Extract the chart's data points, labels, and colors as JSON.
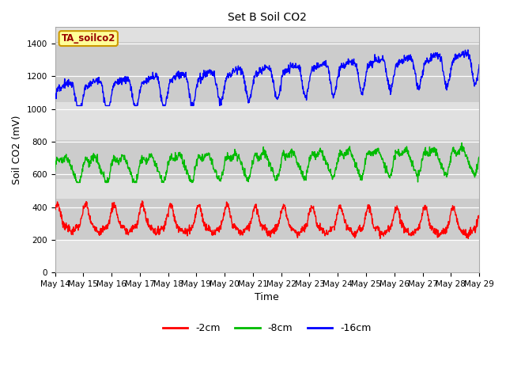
{
  "title": "Set B Soil CO2",
  "xlabel": "Time",
  "ylabel": "Soil CO2 (mV)",
  "ylim": [
    0,
    1500
  ],
  "yticks": [
    0,
    200,
    400,
    600,
    800,
    1000,
    1200,
    1400
  ],
  "background_color": "#ffffff",
  "plot_bg_color": "#e0e0e0",
  "band_bg": "#cccccc",
  "band_ranges": {
    "red": [
      200,
      450
    ],
    "green": [
      570,
      810
    ],
    "blue": [
      1040,
      1410
    ]
  },
  "legend_labels": [
    "-2cm",
    "-8cm",
    "-16cm"
  ],
  "legend_colors": [
    "#ff0000",
    "#00bb00",
    "#0000ff"
  ],
  "annotation_text": "TA_soilco2",
  "annotation_color": "#990000",
  "annotation_bg": "#ffff99",
  "annotation_border": "#cc9900",
  "x_tick_labels": [
    "May 14",
    "May 15",
    "May 16",
    "May 17",
    "May 18",
    "May 19",
    "May 20",
    "May 21",
    "May 22",
    "May 23",
    "May 24",
    "May 25",
    "May 26",
    "May 27",
    "May 28",
    "May 29"
  ],
  "line_width": 1.0,
  "title_fontsize": 10,
  "axis_fontsize": 9,
  "tick_fontsize": 7.5
}
